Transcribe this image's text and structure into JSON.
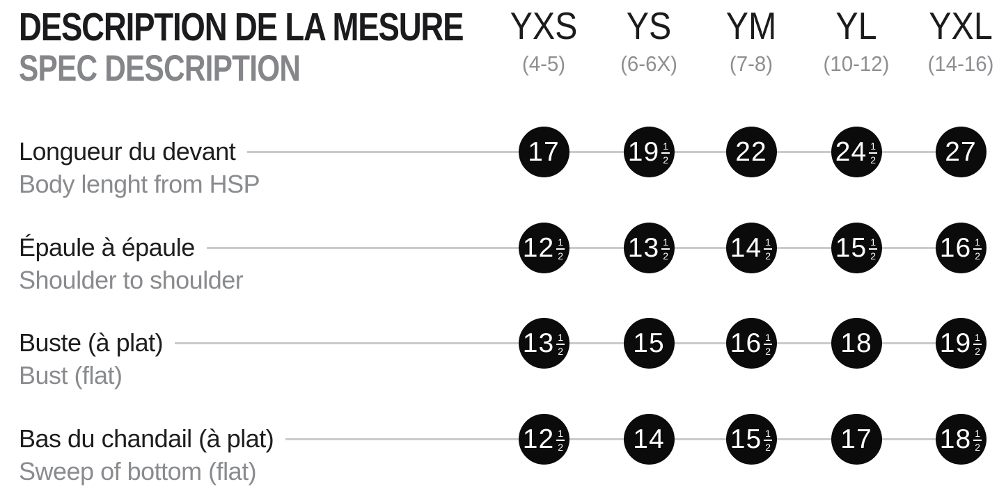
{
  "header": {
    "title_fr": "DESCRIPTION DE LA MESURE",
    "title_en": "SPEC DESCRIPTION"
  },
  "columns": [
    {
      "size": "YXS",
      "range": "(4-5)"
    },
    {
      "size": "YS",
      "range": "(6-6X)"
    },
    {
      "size": "YM",
      "range": "(7-8)"
    },
    {
      "size": "YL",
      "range": "(10-12)"
    },
    {
      "size": "YXL",
      "range": "(14-16)"
    }
  ],
  "rows": [
    {
      "label_fr": "Longueur du devant",
      "label_en": "Body lenght from HSP",
      "values": [
        "17",
        "19½",
        "22",
        "24½",
        "27"
      ]
    },
    {
      "label_fr": "Épaule à épaule",
      "label_en": "Shoulder to shoulder",
      "values": [
        "12½",
        "13½",
        "14½",
        "15½",
        "16½"
      ]
    },
    {
      "label_fr": "Buste (à plat)",
      "label_en": "Bust (flat)",
      "values": [
        "13½",
        "15",
        "16½",
        "18",
        "19½"
      ]
    },
    {
      "label_fr": "Bas du chandail (à plat)",
      "label_en": "Sweep of bottom (flat)",
      "values": [
        "12½",
        "14",
        "15½",
        "17",
        "18½"
      ]
    }
  ],
  "fraction": {
    "numerator": "1",
    "denominator": "2"
  },
  "colors": {
    "text_black": "#1b1b1d",
    "text_gray": "#8a8b8e",
    "line_gray": "#cacbcd",
    "dot_black": "#0b0b0c",
    "dot_text": "#ffffff",
    "background": "#ffffff"
  },
  "chart_data": {
    "type": "table",
    "title": "DESCRIPTION DE LA MESURE / SPEC DESCRIPTION",
    "columns": [
      "YXS (4-5)",
      "YS (6-6X)",
      "YM (7-8)",
      "YL (10-12)",
      "YXL (14-16)"
    ],
    "rows": [
      {
        "measure_fr": "Longueur du devant",
        "measure_en": "Body lenght from HSP",
        "values": [
          17,
          19.5,
          22,
          24.5,
          27
        ]
      },
      {
        "measure_fr": "Épaule à épaule",
        "measure_en": "Shoulder to shoulder",
        "values": [
          12.5,
          13.5,
          14.5,
          15.5,
          16.5
        ]
      },
      {
        "measure_fr": "Buste (à plat)",
        "measure_en": "Bust (flat)",
        "values": [
          13.5,
          15,
          16.5,
          18,
          19.5
        ]
      },
      {
        "measure_fr": "Bas du chandail (à plat)",
        "measure_en": "Sweep of bottom (flat)",
        "values": [
          12.5,
          14,
          15.5,
          17,
          18.5
        ]
      }
    ],
    "legend": "off",
    "grid": "off",
    "value_marker": "black-circle-with-white-number"
  }
}
